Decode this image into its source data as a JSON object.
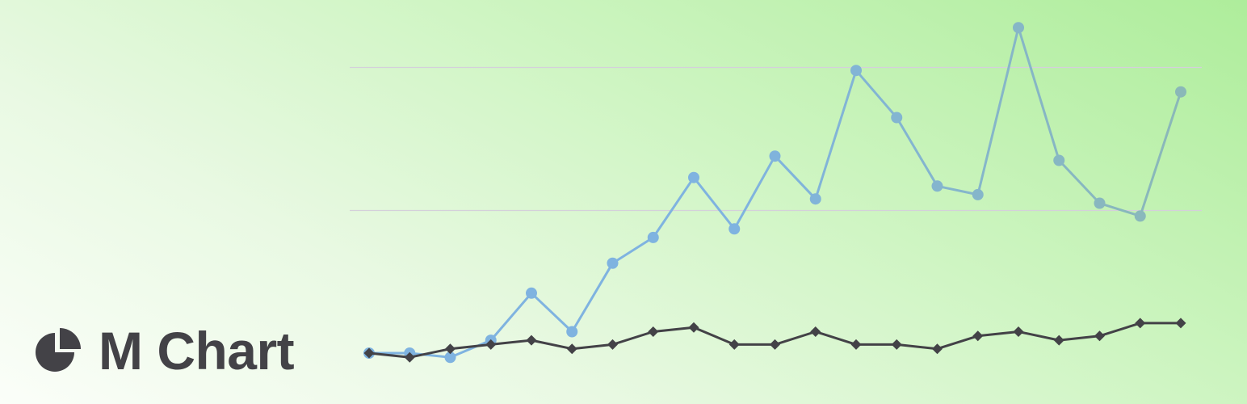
{
  "brand": {
    "name": "M Chart",
    "icon": "pie-chart-icon",
    "text_color": "#434247"
  },
  "colors": {
    "series_blue": "#7fb3e0",
    "series_teal": "#8ab8b8",
    "series_dark": "#434247",
    "gridline": "#d4d0da"
  },
  "chart_data": {
    "type": "line",
    "title": "",
    "xlabel": "",
    "ylabel": "",
    "x": [
      1,
      2,
      3,
      4,
      5,
      6,
      7,
      8,
      9,
      10,
      11,
      12,
      13,
      14,
      15,
      16,
      17,
      18,
      19,
      20,
      21
    ],
    "ylim": [
      0,
      100
    ],
    "gridlines": [
      33.3,
      66.7
    ],
    "axes_visible": false,
    "legend": "none",
    "series": [
      {
        "marker": "circle",
        "values": [
          0,
          0,
          -1,
          3,
          14,
          5,
          21,
          27,
          41,
          29,
          46,
          36,
          66,
          55,
          39,
          37,
          76,
          45,
          35,
          32,
          61
        ]
      },
      {
        "marker": "diamond",
        "values": [
          0,
          -1,
          1,
          2,
          3,
          1,
          2,
          5,
          6,
          2,
          2,
          5,
          2,
          2,
          1,
          4,
          5,
          3,
          4,
          7,
          7
        ]
      }
    ]
  }
}
